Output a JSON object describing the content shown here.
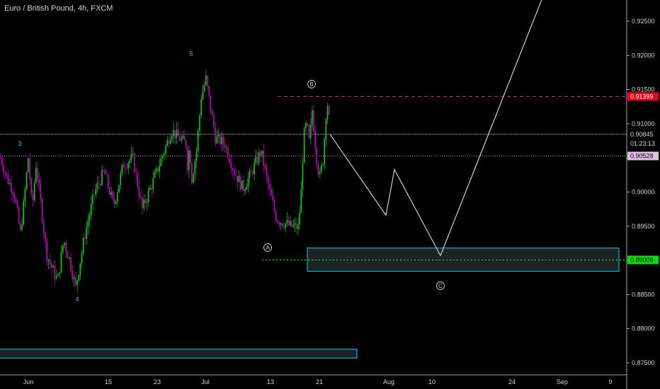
{
  "title": "Euro / British Pound, 4h, FXCM",
  "colors": {
    "background": "#000000",
    "up_candle": "#00d400",
    "down_candle": "#c400c4",
    "resistance_line": "#e53935",
    "support_line": "#00e000",
    "box_border": "#26c6da",
    "box_fill": "#1e2a2a",
    "projection": "#e0e0e0",
    "price_line": "#cfcfcf",
    "axis_text": "#d1d4dc"
  },
  "chart_data": {
    "type": "candlestick",
    "ylim": [
      0.873,
      0.9275
    ],
    "y_ticks": [
      "0.92500",
      "0.92000",
      "0.91500",
      "0.91000",
      "0.90500",
      "0.90000",
      "0.89500",
      "0.89000",
      "0.88500",
      "0.88000",
      "0.87500"
    ],
    "x_ticks": [
      "Jun",
      "15",
      "23",
      "Jul",
      "13",
      "21",
      "Aug",
      "10",
      "24",
      "Sep",
      "9"
    ],
    "price_tags": {
      "resistance": "0.91399",
      "current": "0.90845",
      "countdown": "01:23:13",
      "low_line": "0.90528",
      "support": "0.89006"
    },
    "levels": {
      "resistance": 0.91399,
      "current": 0.90845,
      "low_line": 0.90528,
      "support": 0.89006,
      "target_zone": [
        0.8884,
        0.8918
      ],
      "bottom_zone": [
        0.8757,
        0.877
      ]
    },
    "wave_labels": [
      "3",
      "4",
      "5",
      "A",
      "B",
      "C"
    ],
    "projection": [
      0.90845,
      0.8966,
      0.9033,
      0.8907,
      0.93
    ],
    "anchors": [
      [
        0.905,
        0.902,
        0.9,
        0.894
      ],
      [
        0.894,
        0.899,
        0.905,
        0.8975,
        0.904
      ],
      [
        0.904,
        0.898,
        0.891,
        0.889
      ],
      [
        0.889,
        0.887,
        0.893,
        0.89,
        0.886
      ],
      [
        0.886,
        0.894,
        0.9,
        0.903,
        0.898,
        0.904,
        0.905,
        0.8975
      ],
      [
        0.8975,
        0.903,
        0.909,
        0.907
      ],
      [
        0.907,
        0.904,
        0.906,
        0.905,
        0.902
      ],
      [
        0.902,
        0.906,
        0.914,
        0.9165
      ],
      [
        0.9165,
        0.908,
        0.907,
        0.903
      ],
      [
        0.903,
        0.9005,
        0.903,
        0.906,
        0.9
      ],
      [
        0.9,
        0.896,
        0.8955,
        0.895,
        0.8948
      ],
      [
        0.8948,
        0.899,
        0.908,
        0.91,
        0.907,
        0.912
      ],
      [
        0.912,
        0.906,
        0.902,
        0.905,
        0.9137,
        0.9085
      ]
    ]
  }
}
